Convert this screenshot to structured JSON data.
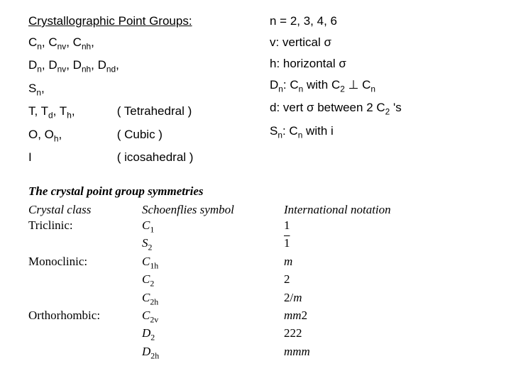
{
  "header": "Crystallographic Point Groups:",
  "left": {
    "l1a": "C",
    "l1b": ", C",
    "l1c": ", C",
    "l1d": ",",
    "l2a": "D",
    "l2b": ", D",
    "l2c": ", D",
    "l2d": ", D",
    "l2e": ",",
    "l3a": "S",
    "l3b": ",",
    "l4a": "T, T",
    "l4b": ", T",
    "l4c": ",",
    "l4p": "( Tetrahedral )",
    "l5a": "O, O",
    "l5b": ",",
    "l5p": "( Cubic )",
    "l6a": "I",
    "l6p": "( icosahedral )",
    "sub_n": "n",
    "sub_nv": "nv",
    "sub_nh": "nh",
    "sub_nd": "nd",
    "sub_d": "d",
    "sub_h": "h"
  },
  "right": {
    "r1a": "n = 2, 3, 4, 6",
    "r2a": "v:  vertical  ",
    "sigma": "σ",
    "r3a": "h:  horizontal  ",
    "r4a": "D",
    "r4b": ":  C",
    "r4c": " with C",
    "r4d": " ⊥ C",
    "r5a": "d:  vert ",
    "r5b": " between 2 C",
    "r5c": " 's",
    "r6a": "S",
    "r6b": ": C",
    "r6c": " with i",
    "sub_n": "n",
    "sub_2": "2"
  },
  "table": {
    "title": "The crystal point group symmetries",
    "h1": "Crystal class",
    "h2": "Schoenflies symbol",
    "h3": "International notation",
    "rows": [
      {
        "cls": "Triclinic:",
        "sch": "C",
        "sub": "1",
        "intl": "1"
      },
      {
        "cls": "",
        "sch": "S",
        "sub": "2",
        "intl": "1̄"
      },
      {
        "cls": "Monoclinic:",
        "sch": "C",
        "sub": "1h",
        "intl": "m"
      },
      {
        "cls": "",
        "sch": "C",
        "sub": "2",
        "intl": "2"
      },
      {
        "cls": "",
        "sch": "C",
        "sub": "2h",
        "intl": "2/m"
      },
      {
        "cls": "Orthorhombic:",
        "sch": "C",
        "sub": "2v",
        "intl": "mm2"
      },
      {
        "cls": "",
        "sch": "D",
        "sub": "2",
        "intl": "222"
      },
      {
        "cls": "",
        "sch": "D",
        "sub": "2h",
        "intl": "mmm"
      }
    ]
  }
}
